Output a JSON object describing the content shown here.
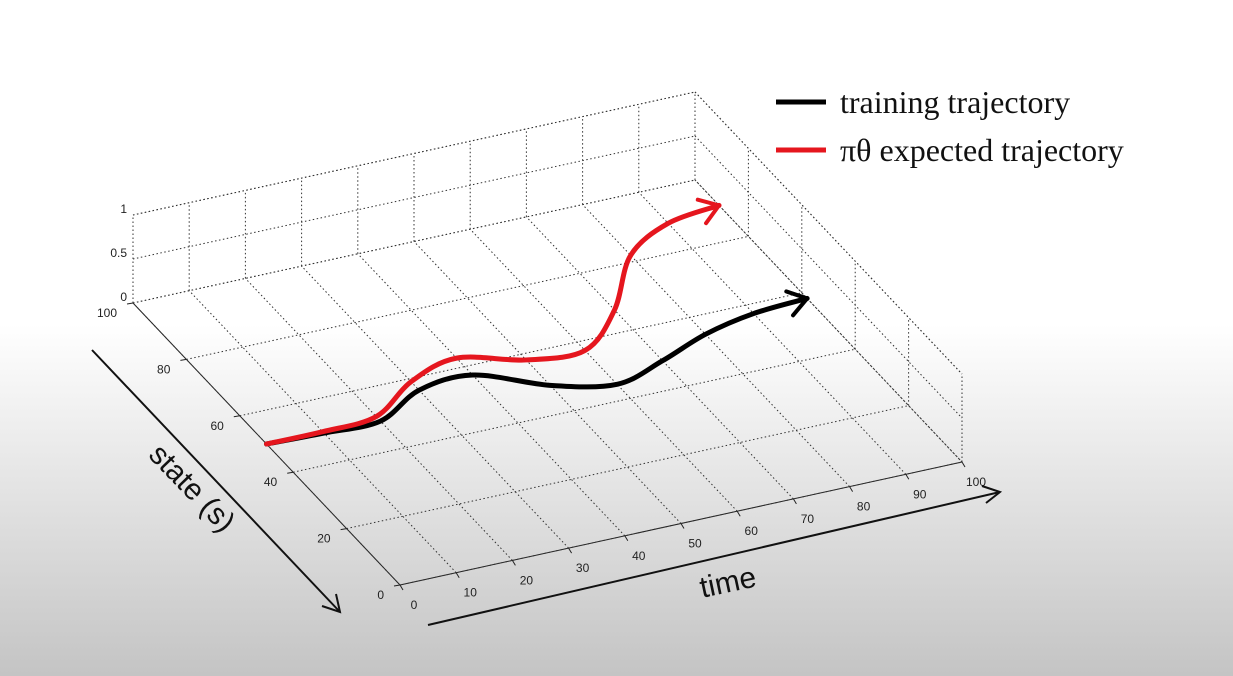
{
  "chart_data": {
    "type": "line3d",
    "x_label": "time",
    "y_label": "state (s)",
    "x": [
      0,
      10,
      20,
      30,
      40,
      50,
      60,
      70,
      80,
      90,
      100
    ],
    "series": [
      {
        "name": "training trajectory",
        "color": "#000000",
        "values": [
          50,
          49.5,
          49.4,
          56,
          57,
          49,
          45,
          49,
          54,
          57,
          58
        ]
      },
      {
        "name": "πθ expected trajectory",
        "color": "#e5161e",
        "values": [
          50,
          50,
          51,
          59,
          63,
          58,
          57,
          67,
          82,
          89,
          91
        ]
      }
    ],
    "xlim": [
      0,
      100
    ],
    "xticks": [
      0,
      10,
      20,
      30,
      40,
      50,
      60,
      70,
      80,
      90,
      100
    ],
    "ylim": [
      0,
      100
    ],
    "yticks": [
      0,
      20,
      40,
      60,
      80,
      100
    ],
    "zlim": [
      0,
      1
    ],
    "zticks": [
      0,
      0.5,
      1
    ],
    "grid": true,
    "legend": "upper right"
  }
}
